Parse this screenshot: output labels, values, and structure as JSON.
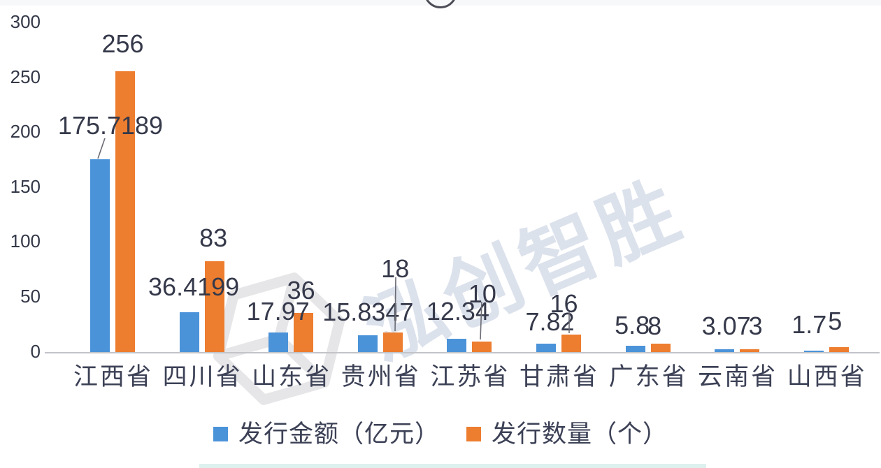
{
  "watermark": {
    "text": "泓创智胜"
  },
  "legend": {
    "items": [
      {
        "label": "发行金额（亿元）",
        "color": "#4b93d9"
      },
      {
        "label": "发行数量（个）",
        "color": "#ed7d2f"
      }
    ]
  },
  "chart_data": {
    "type": "bar",
    "title": "",
    "categories": [
      "江西省",
      "四川省",
      "山东省",
      "贵州省",
      "江苏省",
      "甘肃省",
      "广东省",
      "云南省",
      "山西省"
    ],
    "series": [
      {
        "name": "发行金额（亿元）",
        "color": "#4b93d9",
        "values": [
          175.7189,
          36.4199,
          17.97,
          15.8347,
          12.34,
          7.82,
          5.8,
          3.07,
          1.7
        ],
        "data_labels": [
          "175.7189",
          "36.4199",
          "17.97",
          "15.8347",
          "12.34",
          "7.82",
          "5.8",
          "3.07",
          "1.7"
        ]
      },
      {
        "name": "发行数量（个）",
        "color": "#ed7d2f",
        "values": [
          256,
          83,
          36,
          18,
          10,
          16,
          8,
          3,
          5
        ],
        "data_labels": [
          "256",
          "83",
          "36",
          "18",
          "10",
          "16",
          "8",
          "3",
          "5"
        ]
      }
    ],
    "ylim": [
      0,
      300
    ],
    "yticks": [
      0,
      50,
      100,
      150,
      200,
      250,
      300
    ],
    "grid": false,
    "legend_position": "bottom",
    "callout_labels": [
      "175.7189",
      "18",
      "10",
      "16"
    ]
  }
}
